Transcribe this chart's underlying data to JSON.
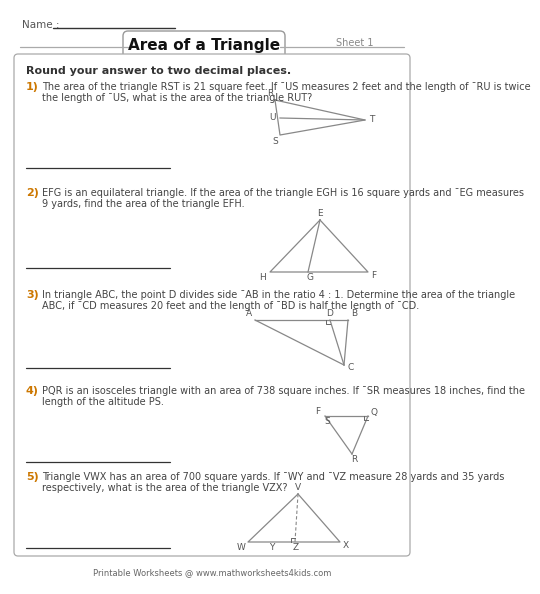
{
  "title": "Area of a Triangle",
  "sheet": "Sheet 1",
  "name_label": "Name : ",
  "instruction": "Round your answer to two decimal places.",
  "background": "#ffffff",
  "footer": "Printable Worksheets @ www.mathworksheets4kids.com",
  "q1_num": "1)",
  "q1_line1": "The area of the triangle RST is 21 square feet. If ¯US measures 2 feet and the length of ¯RU is twice",
  "q1_line2": "the length of ¯US, what is the area of the triangle RUT?",
  "q2_num": "2)",
  "q2_line1": "EFG is an equilateral triangle. If the area of the triangle EGH is 16 square yards and ¯EG measures",
  "q2_line2": "9 yards, find the area of the triangle EFH.",
  "q3_num": "3)",
  "q3_line1": "In triangle ABC, the point D divides side ¯AB in the ratio 4 : 1. Determine the area of the triangle",
  "q3_line2": "ABC, if ¯CD measures 20 feet and the length of ¯BD is half the length of ¯CD.",
  "q4_num": "4)",
  "q4_line1": "PQR is an isosceles triangle with an area of 738 square inches. If ¯SR measures 18 inches, find the",
  "q4_line2": "length of the altitude PS.",
  "q5_num": "5)",
  "q5_line1": "Triangle VWX has an area of 700 square yards. If ¯WY and ¯VZ measure 28 yards and 35 yards",
  "q5_line2": "respectively, what is the area of the triangle VZX?"
}
